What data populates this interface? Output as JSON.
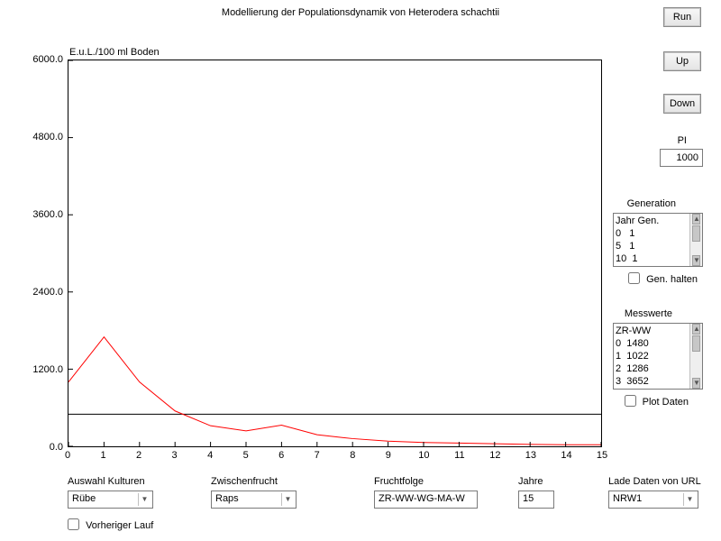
{
  "title": "Modellierung der Populationsdynamik von Heterodera schachtii",
  "chart": {
    "type": "line",
    "ylabel": "E.u.L./100 ml Boden",
    "xlim": [
      0,
      15
    ],
    "ylim": [
      0,
      6000
    ],
    "ytick_step": 1200,
    "xtick_step": 1,
    "background_color": "#ffffff",
    "border_color": "#000000",
    "threshold": {
      "value": 500,
      "color": "#000000",
      "width": 1
    },
    "series": {
      "color": "#ff0000",
      "width": 1,
      "xvalues": [
        0,
        1,
        2,
        3,
        4,
        5,
        6,
        7,
        8,
        9,
        10,
        11,
        12,
        13,
        14,
        15
      ],
      "yvalues": [
        1000,
        1700,
        1000,
        550,
        320,
        240,
        330,
        180,
        120,
        80,
        60,
        50,
        40,
        30,
        25,
        25
      ]
    },
    "label_fontsize": 11,
    "tick_fontsize": 11
  },
  "buttons": {
    "run": "Run",
    "up": "Up",
    "down": "Down"
  },
  "pi": {
    "label": "PI",
    "value": "1000"
  },
  "generation": {
    "label": "Generation",
    "header": "Jahr Gen.",
    "rows": [
      "0   1",
      "5   1",
      "10  1"
    ]
  },
  "gen_halten": {
    "label": "Gen. halten",
    "checked": false
  },
  "messwerte": {
    "label": "Messwerte",
    "header": "ZR-WW",
    "rows": [
      "0  1480",
      "1  1022",
      "2  1286",
      "3  3652"
    ]
  },
  "plot_daten": {
    "label": "Plot Daten",
    "checked": false
  },
  "bottom": {
    "auswahl_kulturen": {
      "label": "Auswahl Kulturen",
      "value": "Rübe"
    },
    "zwischenfrucht": {
      "label": "Zwischenfrucht",
      "value": "Raps"
    },
    "fruchtfolge": {
      "label": "Fruchtfolge",
      "value": "ZR-WW-WG-MA-W"
    },
    "jahre": {
      "label": "Jahre",
      "value": "15"
    },
    "lade_daten": {
      "label": "Lade Daten von URL",
      "value": "NRW1"
    }
  },
  "vorheriger_lauf": {
    "label": "Vorheriger Lauf",
    "checked": false
  }
}
